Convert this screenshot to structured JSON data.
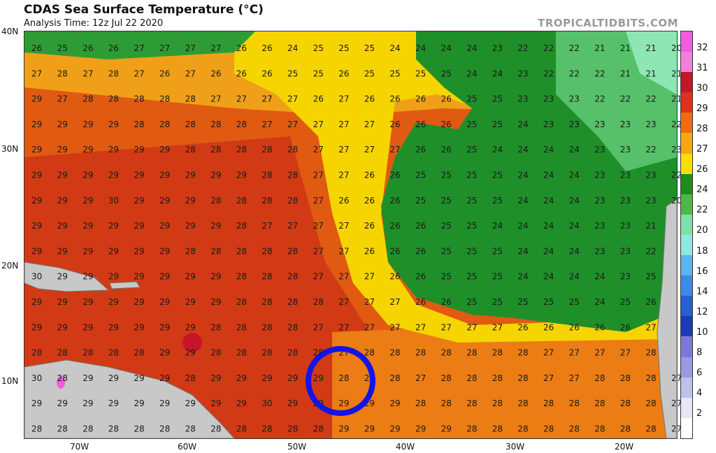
{
  "header": {
    "title": "CDAS Sea Surface Temperature (°C)",
    "subtitle": "Analysis Time: 12z Jul 22 2020",
    "brand": "TROPICALTIDBITS.COM"
  },
  "axes": {
    "lat_labels": [
      "40N",
      "30N",
      "20N",
      "10N"
    ],
    "lon_labels": [
      "70W",
      "60W",
      "50W",
      "40W",
      "30W",
      "20W"
    ]
  },
  "colorbar": {
    "labels": [
      "32",
      "31",
      "30",
      "29",
      "28",
      "27",
      "26",
      "24",
      "22",
      "20",
      "18",
      "16",
      "14",
      "12",
      "10",
      "8",
      "6",
      "4",
      "2"
    ],
    "colors": [
      "#f25ce0",
      "#f27fd9",
      "#c4162a",
      "#e0301e",
      "#ee6c14",
      "#f5a814",
      "#f5e000",
      "#1e8c1e",
      "#4cb84c",
      "#7fe0a8",
      "#8fe8e0",
      "#5ab4f0",
      "#3c8ce6",
      "#2860d0",
      "#1c3cb4",
      "#7a7ad6",
      "#9a9ae0",
      "#c0c0ec",
      "#e6e6f6"
    ]
  },
  "map": {
    "marker": "blue-circle",
    "grid_values": [
      [
        "26",
        "25",
        "26",
        "26",
        "27",
        "27",
        "27",
        "27",
        "26",
        "26",
        "24",
        "25",
        "25",
        "25",
        "24",
        "24",
        "24",
        "24",
        "23",
        "22",
        "22",
        "22",
        "21",
        "21",
        "21",
        "20"
      ],
      [
        "27",
        "28",
        "27",
        "28",
        "27",
        "26",
        "27",
        "26",
        "26",
        "26",
        "25",
        "25",
        "26",
        "25",
        "25",
        "25",
        "25",
        "24",
        "24",
        "23",
        "22",
        "22",
        "22",
        "21",
        "21",
        "21"
      ],
      [
        "29",
        "27",
        "28",
        "28",
        "28",
        "28",
        "28",
        "27",
        "27",
        "27",
        "27",
        "26",
        "27",
        "26",
        "26",
        "26",
        "26",
        "25",
        "25",
        "23",
        "23",
        "23",
        "22",
        "22",
        "22",
        "21"
      ],
      [
        "29",
        "29",
        "29",
        "29",
        "28",
        "28",
        "28",
        "28",
        "28",
        "27",
        "27",
        "27",
        "27",
        "27",
        "26",
        "26",
        "26",
        "25",
        "25",
        "24",
        "23",
        "23",
        "23",
        "23",
        "23",
        "22"
      ],
      [
        "29",
        "29",
        "29",
        "29",
        "29",
        "29",
        "28",
        "28",
        "28",
        "28",
        "28",
        "27",
        "27",
        "27",
        "27",
        "26",
        "26",
        "25",
        "24",
        "24",
        "24",
        "24",
        "23",
        "23",
        "22",
        "23"
      ],
      [
        "29",
        "29",
        "29",
        "29",
        "29",
        "29",
        "29",
        "29",
        "29",
        "28",
        "28",
        "27",
        "27",
        "26",
        "26",
        "25",
        "25",
        "25",
        "25",
        "24",
        "24",
        "24",
        "23",
        "23",
        "23",
        "22"
      ],
      [
        "29",
        "29",
        "29",
        "30",
        "29",
        "29",
        "29",
        "28",
        "28",
        "28",
        "28",
        "27",
        "26",
        "26",
        "26",
        "25",
        "25",
        "25",
        "25",
        "24",
        "24",
        "24",
        "23",
        "23",
        "23",
        "20"
      ],
      [
        "29",
        "29",
        "29",
        "29",
        "29",
        "29",
        "29",
        "29",
        "28",
        "27",
        "27",
        "27",
        "27",
        "26",
        "26",
        "26",
        "25",
        "25",
        "24",
        "24",
        "24",
        "24",
        "23",
        "23",
        "21",
        ""
      ],
      [
        "29",
        "29",
        "29",
        "29",
        "29",
        "29",
        "28",
        "28",
        "28",
        "28",
        "28",
        "27",
        "27",
        "26",
        "26",
        "26",
        "25",
        "25",
        "25",
        "24",
        "24",
        "24",
        "23",
        "23",
        "22",
        ""
      ],
      [
        "30",
        "29",
        "29",
        "29",
        "29",
        "29",
        "29",
        "29",
        "28",
        "28",
        "28",
        "27",
        "27",
        "27",
        "26",
        "26",
        "25",
        "25",
        "25",
        "24",
        "24",
        "24",
        "24",
        "23",
        "25",
        ""
      ],
      [
        "29",
        "29",
        "29",
        "29",
        "29",
        "29",
        "29",
        "29",
        "28",
        "28",
        "28",
        "28",
        "27",
        "27",
        "27",
        "26",
        "26",
        "25",
        "25",
        "25",
        "25",
        "25",
        "24",
        "25",
        "26",
        ""
      ],
      [
        "29",
        "29",
        "29",
        "29",
        "29",
        "29",
        "29",
        "28",
        "28",
        "28",
        "28",
        "27",
        "27",
        "27",
        "27",
        "27",
        "27",
        "27",
        "27",
        "26",
        "26",
        "26",
        "26",
        "26",
        "27",
        ""
      ],
      [
        "28",
        "28",
        "28",
        "28",
        "28",
        "29",
        "29",
        "28",
        "28",
        "28",
        "28",
        "28",
        "27",
        "28",
        "28",
        "28",
        "28",
        "28",
        "28",
        "28",
        "27",
        "27",
        "27",
        "27",
        "28",
        ""
      ],
      [
        "30",
        "28",
        "29",
        "29",
        "29",
        "29",
        "28",
        "29",
        "29",
        "29",
        "29",
        "29",
        "28",
        "29",
        "28",
        "27",
        "28",
        "28",
        "28",
        "28",
        "27",
        "27",
        "28",
        "28",
        "28",
        "27"
      ],
      [
        "29",
        "29",
        "29",
        "29",
        "29",
        "29",
        "29",
        "29",
        "29",
        "30",
        "29",
        "29",
        "29",
        "29",
        "29",
        "28",
        "28",
        "28",
        "28",
        "28",
        "28",
        "28",
        "28",
        "28",
        "28",
        "27"
      ],
      [
        "28",
        "28",
        "28",
        "28",
        "28",
        "28",
        "28",
        "28",
        "28",
        "28",
        "28",
        "28",
        "29",
        "29",
        "29",
        "29",
        "29",
        "28",
        "28",
        "28",
        "28",
        "28",
        "28",
        "28",
        "28",
        "27"
      ]
    ]
  }
}
